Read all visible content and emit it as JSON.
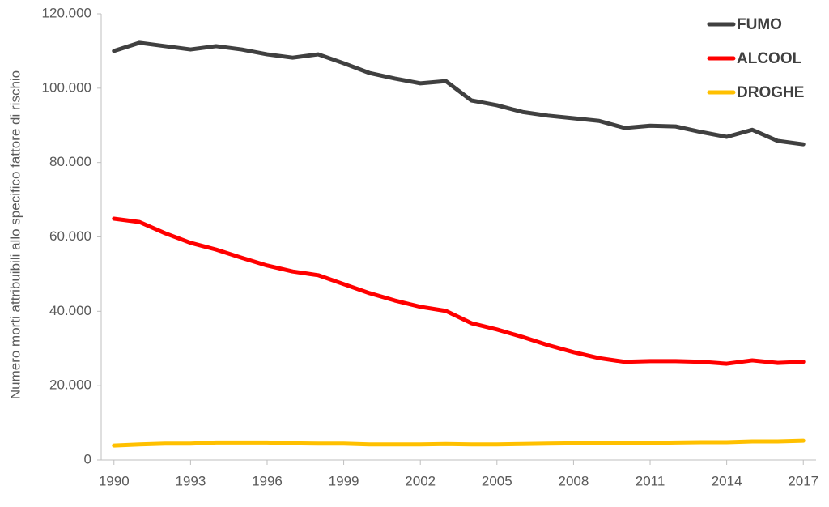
{
  "chart_data": {
    "type": "line",
    "y_label": "Numero morti attribuibili allo specifico fattore di rischio",
    "x": [
      1990,
      1991,
      1992,
      1993,
      1994,
      1995,
      1996,
      1997,
      1998,
      1999,
      2000,
      2001,
      2002,
      2003,
      2004,
      2005,
      2006,
      2007,
      2008,
      2009,
      2010,
      2011,
      2012,
      2013,
      2014,
      2015,
      2016,
      2017
    ],
    "series": [
      {
        "name": "FUMO",
        "color": "#404040",
        "values": [
          110000,
          112200,
          111300,
          110400,
          111300,
          110400,
          109100,
          108200,
          109100,
          106700,
          104100,
          102600,
          101300,
          101900,
          96700,
          95400,
          93600,
          92600,
          91900,
          91200,
          89300,
          89900,
          89700,
          88200,
          86900,
          88800,
          85800,
          84900
        ]
      },
      {
        "name": "ALCOOL",
        "color": "#ff0000",
        "values": [
          64900,
          64000,
          61000,
          58400,
          56600,
          54400,
          52300,
          50700,
          49700,
          47300,
          44900,
          42900,
          41200,
          40100,
          36800,
          35100,
          33100,
          30900,
          29000,
          27400,
          26400,
          26600,
          26600,
          26400,
          25900,
          26800,
          26100,
          26400
        ]
      },
      {
        "name": "DROGHE",
        "color": "#ffc000",
        "values": [
          3900,
          4200,
          4400,
          4400,
          4700,
          4700,
          4700,
          4500,
          4400,
          4400,
          4200,
          4200,
          4200,
          4300,
          4200,
          4200,
          4300,
          4400,
          4500,
          4500,
          4500,
          4600,
          4700,
          4800,
          4800,
          5000,
          5000,
          5200
        ]
      }
    ],
    "xlim": [
      1989.5,
      2017.5
    ],
    "xticks": [
      1990,
      1993,
      1996,
      1999,
      2002,
      2005,
      2008,
      2011,
      2014,
      2017
    ],
    "ylim": [
      0,
      120000
    ],
    "yticks": [
      0,
      {
        "value": 20000,
        "label": "20.000"
      },
      {
        "value": 40000,
        "label": "40.000"
      },
      {
        "value": 60000,
        "label": "60.000"
      },
      {
        "value": 80000,
        "label": "80.000"
      },
      {
        "value": 100000,
        "label": "100.000"
      },
      {
        "value": 120000,
        "label": "120.000"
      }
    ],
    "grid": false,
    "legend": "top-right"
  }
}
